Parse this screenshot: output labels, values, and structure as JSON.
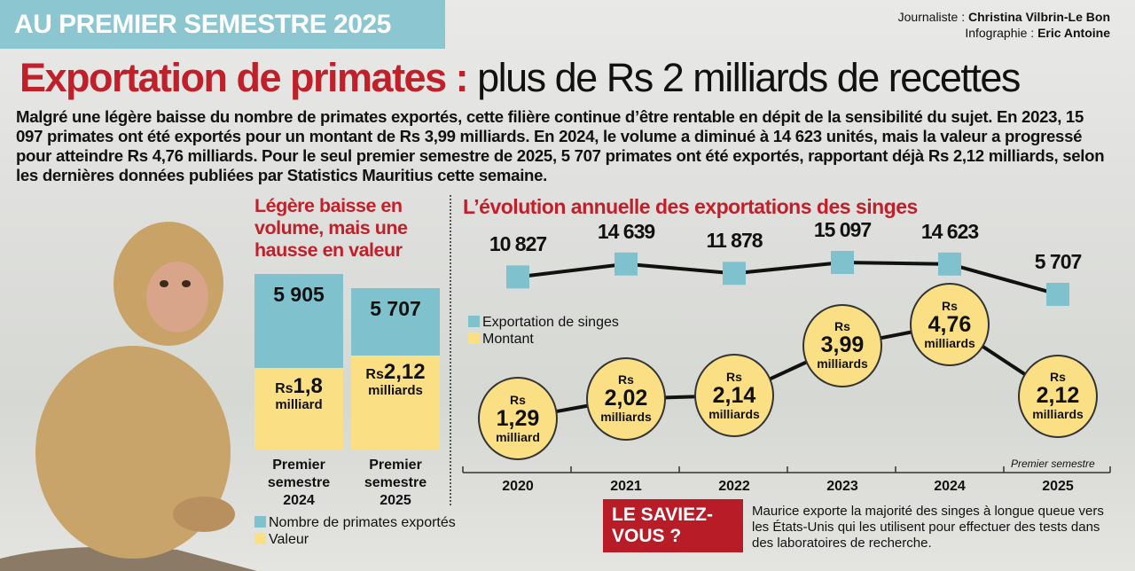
{
  "header": {
    "banner": "AU PREMIER SEMESTRE 2025",
    "journalist_label": "Journaliste : ",
    "journalist": "Christina Vilbrin-Le Bon",
    "infographie_label": "Infographie : ",
    "infographie": "Eric Antoine"
  },
  "title": {
    "red": "Exportation de primates :",
    "black": " plus de Rs 2 milliards de recettes"
  },
  "intro": "Malgré une légère baisse du nombre de primates exportés, cette filière continue d’être rentable en dépit de la sensibilité du sujet. En 2023, 15 097 primates ont été exportés pour un montant de Rs 3,99 milliards. En 2024, le volume a diminué à 14 623 unités, mais la valeur a progressé pour atteindre Rs 4,76 milliards. Pour le seul premier semestre de 2025, 5 707 primates ont été exportés, rapportant déjà Rs 2,12 milliards, selon les dernières données publiées par Statistics Mauritius cette semaine.",
  "colors": {
    "red": "#c0202a",
    "blue": "#7fc1cd",
    "yellow": "#fbdf85",
    "banner": "#8cc6d0"
  },
  "chart_data": [
    {
      "type": "bar",
      "title": "Légère baisse en volume, mais une hausse en valeur",
      "categories": [
        "Premier semestre 2024",
        "Premier semestre 2025"
      ],
      "series": [
        {
          "name": "Nombre de primates exportés",
          "values": [
            5905,
            5707
          ],
          "labels": [
            "5 905",
            "5 707"
          ]
        },
        {
          "name": "Valeur",
          "values": [
            1.8,
            2.12
          ],
          "labels": [
            {
              "rs": "Rs",
              "num": "1,8",
              "unit": "milliard"
            },
            {
              "rs": "Rs",
              "num": "2,12",
              "unit": "milliards"
            }
          ]
        }
      ],
      "cat_lines": [
        [
          "Premier",
          "semestre",
          "2024"
        ],
        [
          "Premier",
          "semestre",
          "2025"
        ]
      ]
    },
    {
      "type": "line",
      "title": "L’évolution annuelle des exportations des singes",
      "x": [
        "2020",
        "2021",
        "2022",
        "2023",
        "2024",
        "2025"
      ],
      "series": [
        {
          "name": "Exportation de singes",
          "values": [
            10827,
            14639,
            11878,
            15097,
            14623,
            5707
          ],
          "labels": [
            "10 827",
            "14 639",
            "11 878",
            "15 097",
            "14 623",
            "5 707"
          ]
        },
        {
          "name": "Montant",
          "values": [
            1.29,
            2.02,
            2.14,
            3.99,
            4.76,
            2.12
          ],
          "labels": [
            "1,29",
            "2,02",
            "2,14",
            "3,99",
            "4,76",
            "2,12"
          ],
          "units": [
            "milliard",
            "milliards",
            "milliards",
            "milliards",
            "milliards",
            "milliards"
          ],
          "prefix": "Rs"
        }
      ],
      "annotation": "Premier semestre"
    }
  ],
  "saviez": {
    "label": "LE SAVIEZ-VOUS ?",
    "text": "Maurice exporte la majorité des singes à longue queue vers les États-Unis qui les utilisent pour effectuer des tests dans des laboratoires de recherche."
  }
}
